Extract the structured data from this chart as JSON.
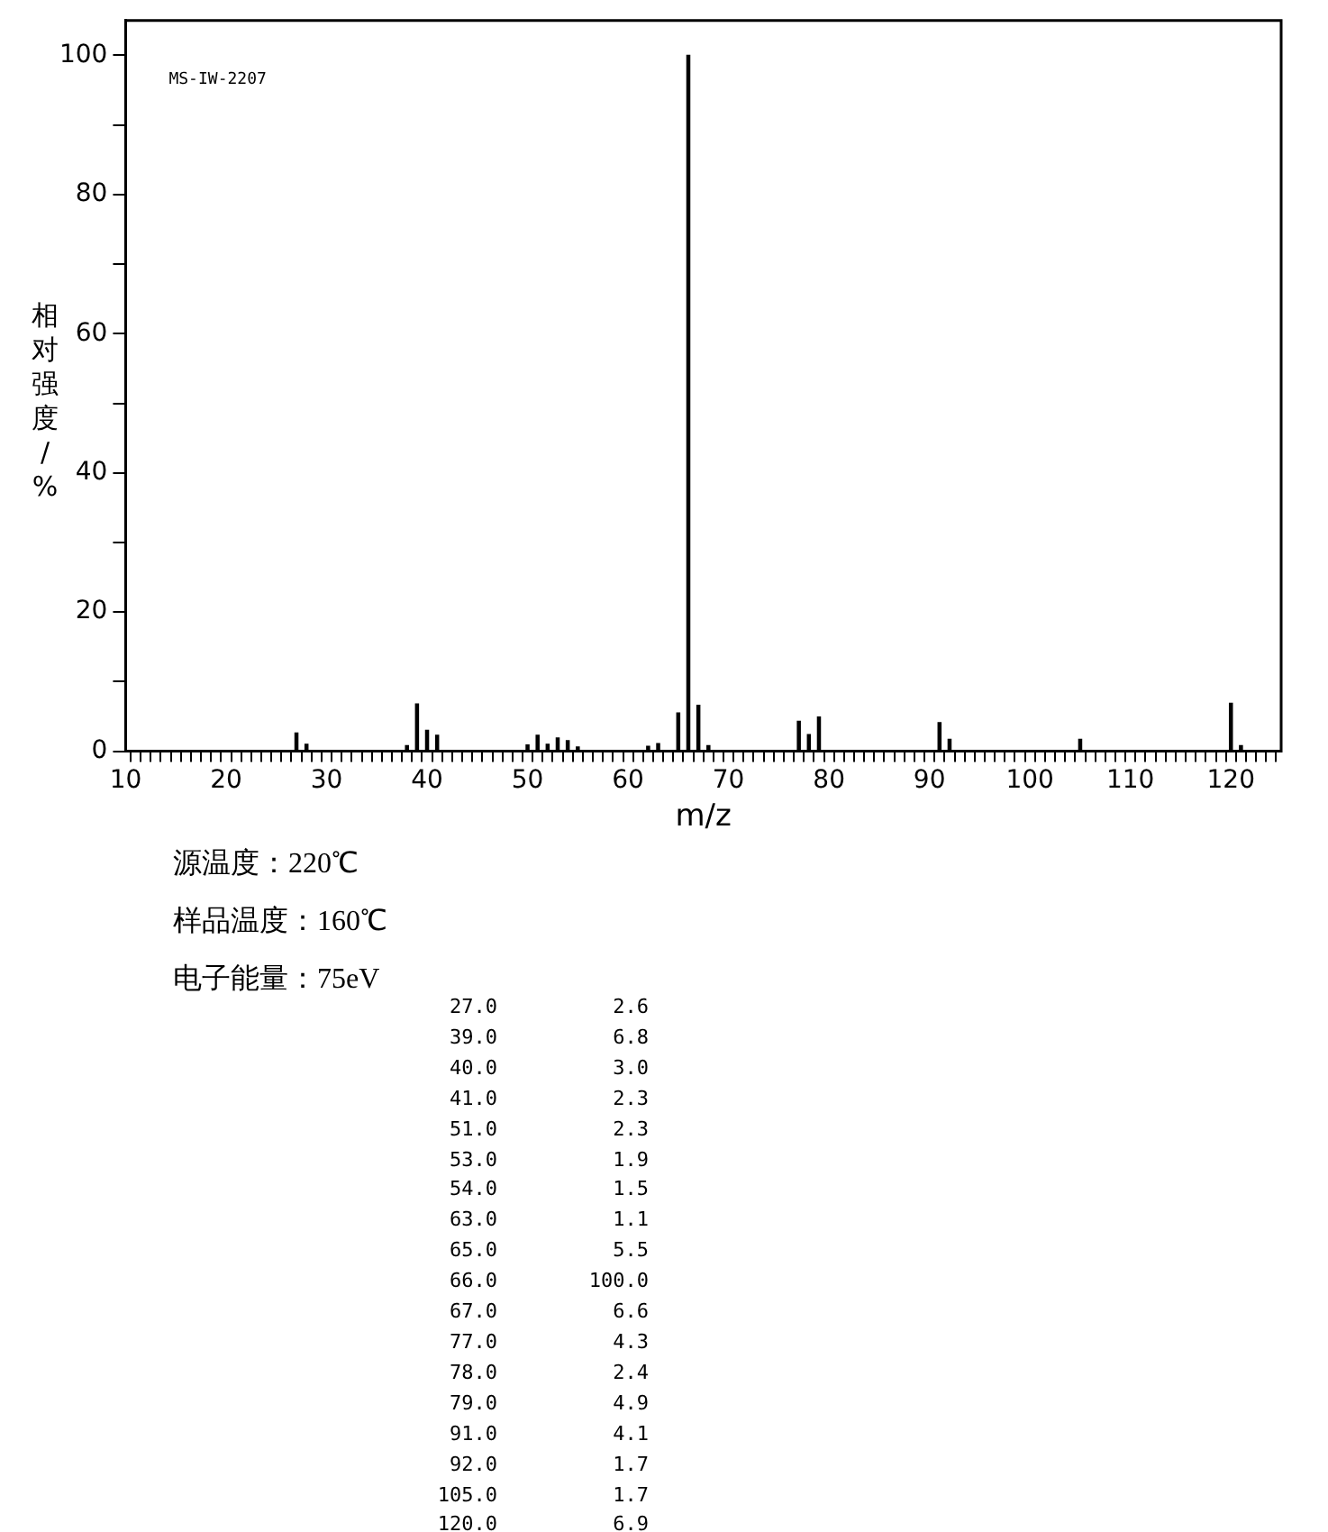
{
  "chart_data": [
    {
      "type": "bar",
      "xlabel": "m/z",
      "ylabel": "相对强度/%",
      "x": [
        27,
        28,
        38,
        39,
        40,
        41,
        50,
        51,
        52,
        53,
        54,
        55,
        62,
        63,
        65,
        66,
        67,
        68,
        77,
        78,
        79,
        91,
        92,
        105,
        120,
        121
      ],
      "series": [
        {
          "color": "#000000",
          "values": [
            2.6,
            1.0,
            0.8,
            6.8,
            3.0,
            2.3,
            0.9,
            2.3,
            1.0,
            1.9,
            1.5,
            0.6,
            0.7,
            1.1,
            5.5,
            100.0,
            6.6,
            0.8,
            4.3,
            2.4,
            4.9,
            4.1,
            1.7,
            1.7,
            6.9,
            0.8
          ]
        }
      ],
      "xlim": [
        10,
        125
      ],
      "ylim": [
        0,
        105
      ],
      "xticks": [
        10,
        {
          "value": 11,
          "label": null
        },
        {
          "value": 12,
          "label": null
        },
        {
          "value": 13,
          "label": null
        },
        {
          "value": 14,
          "label": null
        },
        {
          "value": 15,
          "label": null
        },
        {
          "value": 16,
          "label": null
        },
        {
          "value": 17,
          "label": null
        },
        {
          "value": 18,
          "label": null
        },
        {
          "value": 19,
          "label": null
        },
        20,
        {
          "value": 21,
          "label": null
        },
        {
          "value": 22,
          "label": null
        },
        {
          "value": 23,
          "label": null
        },
        {
          "value": 24,
          "label": null
        },
        {
          "value": 25,
          "label": null
        },
        {
          "value": 26,
          "label": null
        },
        {
          "value": 27,
          "label": null
        },
        {
          "value": 28,
          "label": null
        },
        {
          "value": 29,
          "label": null
        },
        30,
        {
          "value": 31,
          "label": null
        },
        {
          "value": 32,
          "label": null
        },
        {
          "value": 33,
          "label": null
        },
        {
          "value": 34,
          "label": null
        },
        {
          "value": 35,
          "label": null
        },
        {
          "value": 36,
          "label": null
        },
        {
          "value": 37,
          "label": null
        },
        {
          "value": 38,
          "label": null
        },
        {
          "value": 39,
          "label": null
        },
        40,
        {
          "value": 41,
          "label": null
        },
        {
          "value": 42,
          "label": null
        },
        {
          "value": 43,
          "label": null
        },
        {
          "value": 44,
          "label": null
        },
        {
          "value": 45,
          "label": null
        },
        {
          "value": 46,
          "label": null
        },
        {
          "value": 47,
          "label": null
        },
        {
          "value": 48,
          "label": null
        },
        {
          "value": 49,
          "label": null
        },
        50,
        {
          "value": 51,
          "label": null
        },
        {
          "value": 52,
          "label": null
        },
        {
          "value": 53,
          "label": null
        },
        {
          "value": 54,
          "label": null
        },
        {
          "value": 55,
          "label": null
        },
        {
          "value": 56,
          "label": null
        },
        {
          "value": 57,
          "label": null
        },
        {
          "value": 58,
          "label": null
        },
        {
          "value": 59,
          "label": null
        },
        60,
        {
          "value": 61,
          "label": null
        },
        {
          "value": 62,
          "label": null
        },
        {
          "value": 63,
          "label": null
        },
        {
          "value": 64,
          "label": null
        },
        {
          "value": 65,
          "label": null
        },
        {
          "value": 66,
          "label": null
        },
        {
          "value": 67,
          "label": null
        },
        {
          "value": 68,
          "label": null
        },
        {
          "value": 69,
          "label": null
        },
        70,
        {
          "value": 71,
          "label": null
        },
        {
          "value": 72,
          "label": null
        },
        {
          "value": 73,
          "label": null
        },
        {
          "value": 74,
          "label": null
        },
        {
          "value": 75,
          "label": null
        },
        {
          "value": 76,
          "label": null
        },
        {
          "value": 77,
          "label": null
        },
        {
          "value": 78,
          "label": null
        },
        {
          "value": 79,
          "label": null
        },
        80,
        {
          "value": 81,
          "label": null
        },
        {
          "value": 82,
          "label": null
        },
        {
          "value": 83,
          "label": null
        },
        {
          "value": 84,
          "label": null
        },
        {
          "value": 85,
          "label": null
        },
        {
          "value": 86,
          "label": null
        },
        {
          "value": 87,
          "label": null
        },
        {
          "value": 88,
          "label": null
        },
        {
          "value": 89,
          "label": null
        },
        90,
        {
          "value": 91,
          "label": null
        },
        {
          "value": 92,
          "label": null
        },
        {
          "value": 93,
          "label": null
        },
        {
          "value": 94,
          "label": null
        },
        {
          "value": 95,
          "label": null
        },
        {
          "value": 96,
          "label": null
        },
        {
          "value": 97,
          "label": null
        },
        {
          "value": 98,
          "label": null
        },
        {
          "value": 99,
          "label": null
        },
        100,
        {
          "value": 101,
          "label": null
        },
        {
          "value": 102,
          "label": null
        },
        {
          "value": 103,
          "label": null
        },
        {
          "value": 104,
          "label": null
        },
        {
          "value": 105,
          "label": null
        },
        {
          "value": 106,
          "label": null
        },
        {
          "value": 107,
          "label": null
        },
        {
          "value": 108,
          "label": null
        },
        {
          "value": 109,
          "label": null
        },
        110,
        {
          "value": 111,
          "label": null
        },
        {
          "value": 112,
          "label": null
        },
        {
          "value": 113,
          "label": null
        },
        {
          "value": 114,
          "label": null
        },
        {
          "value": 115,
          "label": null
        },
        {
          "value": 116,
          "label": null
        },
        {
          "value": 117,
          "label": null
        },
        {
          "value": 118,
          "label": null
        },
        {
          "value": 119,
          "label": null
        },
        120,
        {
          "value": 121,
          "label": null
        },
        {
          "value": 122,
          "label": null
        },
        {
          "value": 123,
          "label": null
        },
        {
          "value": 124,
          "label": null
        }
      ],
      "yticks": [
        0,
        {
          "value": 10,
          "label": null
        },
        20,
        {
          "value": 30,
          "label": null
        },
        40,
        {
          "value": 50,
          "label": null
        },
        60,
        {
          "value": 70,
          "label": null
        },
        80,
        {
          "value": 90,
          "label": null
        },
        100
      ],
      "grid": false,
      "legend": false,
      "annotations": [
        "MS-IW-2207",
        "源温度：220℃",
        "样品温度：160℃",
        "电子能量：75eV"
      ]
    },
    {
      "type": "other",
      "annotations": [
        "27.0",
        "2.6",
        "39.0",
        "6.8",
        "40.0",
        "3.0",
        "41.0",
        "2.3",
        "51.0",
        "2.3",
        "53.0",
        "1.9",
        "54.0",
        "1.5",
        "63.0",
        "1.1",
        "65.0",
        "5.5",
        "66.0",
        "100.0",
        "67.0",
        "6.6",
        "77.0",
        "4.3",
        "78.0",
        "2.4",
        "79.0",
        "4.9",
        "91.0",
        "4.1",
        "92.0",
        "1.7",
        "105.0",
        "1.7",
        "120.0",
        "6.9"
      ]
    }
  ]
}
